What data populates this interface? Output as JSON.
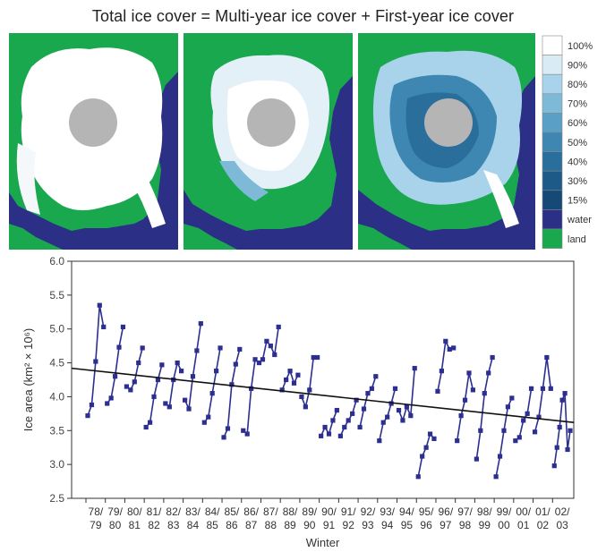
{
  "header": {
    "title": "Total ice cover  =  Multi-year ice cover + First-year ice cover"
  },
  "legend": {
    "items": [
      {
        "label": "100%",
        "color": "#ffffff"
      },
      {
        "label": "90%",
        "color": "#d9ecf6"
      },
      {
        "label": "80%",
        "color": "#a9d3ea"
      },
      {
        "label": "70%",
        "color": "#7fb9d8"
      },
      {
        "label": "60%",
        "color": "#5aa0c6"
      },
      {
        "label": "50%",
        "color": "#3e87b2"
      },
      {
        "label": "40%",
        "color": "#2a6f9c"
      },
      {
        "label": "30%",
        "color": "#1d5a87"
      },
      {
        "label": "15%",
        "color": "#154a76"
      },
      {
        "label": "water",
        "color": "#2c2f86"
      },
      {
        "label": "land",
        "color": "#1aa84f"
      }
    ]
  },
  "maps": [
    {
      "name": "total-ice-map"
    },
    {
      "name": "multi-year-ice-map"
    },
    {
      "name": "first-year-ice-map"
    }
  ],
  "chart_data": {
    "type": "line",
    "xlabel": "Winter",
    "ylabel": "Ice area (km² × 10⁶)",
    "ylim": [
      2.5,
      6.0
    ],
    "yticks": [
      "6.0",
      "5.5",
      "5.0",
      "4.5",
      "4.0",
      "3.5",
      "3.0",
      "2.5"
    ],
    "grid": false,
    "categories": [
      "78/79",
      "79/80",
      "80/81",
      "81/82",
      "82/83",
      "83/84",
      "84/85",
      "85/86",
      "86/87",
      "87/88",
      "88/89",
      "89/90",
      "90/91",
      "91/92",
      "92/93",
      "93/94",
      "94/95",
      "95/96",
      "96/97",
      "97/98",
      "98/99",
      "99/00",
      "00/01",
      "01/02",
      "02/03"
    ],
    "category_labels": [
      {
        "top": "78/",
        "bottom": "79"
      },
      {
        "top": "79/",
        "bottom": "80"
      },
      {
        "top": "80/",
        "bottom": "81"
      },
      {
        "top": "81/",
        "bottom": "82"
      },
      {
        "top": "82/",
        "bottom": "83"
      },
      {
        "top": "83/",
        "bottom": "84"
      },
      {
        "top": "84/",
        "bottom": "85"
      },
      {
        "top": "85/",
        "bottom": "86"
      },
      {
        "top": "86/",
        "bottom": "87"
      },
      {
        "top": "87/",
        "bottom": "88"
      },
      {
        "top": "88/",
        "bottom": "89"
      },
      {
        "top": "89/",
        "bottom": "90"
      },
      {
        "top": "90/",
        "bottom": "91"
      },
      {
        "top": "91/",
        "bottom": "92"
      },
      {
        "top": "92/",
        "bottom": "93"
      },
      {
        "top": "93/",
        "bottom": "94"
      },
      {
        "top": "94/",
        "bottom": "95"
      },
      {
        "top": "95/",
        "bottom": "96"
      },
      {
        "top": "96/",
        "bottom": "97"
      },
      {
        "top": "97/",
        "bottom": "98"
      },
      {
        "top": "98/",
        "bottom": "99"
      },
      {
        "top": "99/",
        "bottom": "00"
      },
      {
        "top": "00/",
        "bottom": "01"
      },
      {
        "top": "01/",
        "bottom": "02"
      },
      {
        "top": "02/",
        "bottom": "03"
      }
    ],
    "winters": [
      [
        3.72,
        3.88,
        4.52,
        5.35,
        5.03
      ],
      [
        3.9,
        3.98,
        4.3,
        4.73,
        5.03
      ],
      [
        4.15,
        4.1,
        4.22,
        4.5,
        4.72
      ],
      [
        3.55,
        3.62,
        4.0,
        4.25,
        4.47
      ],
      [
        3.9,
        3.85,
        4.25,
        4.5,
        4.38
      ],
      [
        3.95,
        3.82,
        4.3,
        4.68,
        5.08
      ],
      [
        3.62,
        3.7,
        4.05,
        4.38,
        4.72
      ],
      [
        3.4,
        3.53,
        4.18,
        4.48,
        4.7
      ],
      [
        3.5,
        3.45,
        4.12,
        4.55,
        4.5
      ],
      [
        4.55,
        4.82,
        4.75,
        4.62,
        5.03
      ],
      [
        4.1,
        4.25,
        4.38,
        4.2,
        4.32
      ],
      [
        4.0,
        3.85,
        4.1,
        4.58,
        4.58
      ],
      [
        3.42,
        3.55,
        3.45,
        3.65,
        3.8
      ],
      [
        3.42,
        3.55,
        3.65,
        3.75,
        3.95
      ],
      [
        3.55,
        3.82,
        4.05,
        4.12,
        4.3
      ],
      [
        3.35,
        3.62,
        3.7,
        3.9,
        4.12
      ],
      [
        3.8,
        3.65,
        3.85,
        3.72,
        4.42
      ],
      [
        2.82,
        3.12,
        3.25,
        3.45,
        3.38
      ],
      [
        4.08,
        4.38,
        4.82,
        4.7,
        4.72
      ],
      [
        3.35,
        3.72,
        3.95,
        4.35,
        4.1
      ],
      [
        3.08,
        3.5,
        4.05,
        4.35,
        4.58
      ],
      [
        2.82,
        3.12,
        3.5,
        3.85,
        3.98
      ],
      [
        3.35,
        3.4,
        3.65,
        3.75,
        4.12
      ],
      [
        3.48,
        3.7,
        4.12,
        4.58,
        4.12
      ],
      [
        2.98,
        3.25,
        3.55,
        3.95,
        4.05,
        3.22,
        3.5
      ]
    ],
    "trend": {
      "start": 4.42,
      "end": 3.62
    },
    "series_color": "#2c2f8f",
    "trend_color": "#111111"
  }
}
